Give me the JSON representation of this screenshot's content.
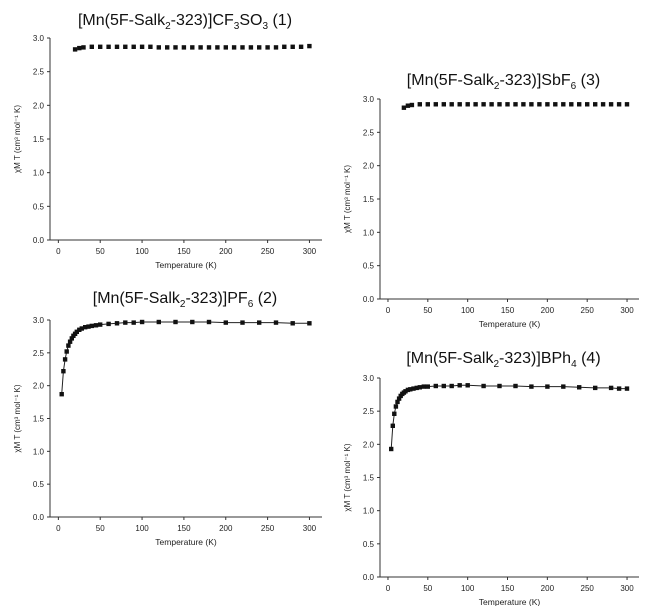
{
  "chart_data": [
    {
      "type": "scatter",
      "title_parts": {
        "pre": "[Mn(5F-Salk",
        "sub1": "2",
        "mid": "-323)]CF",
        "sub2": "3",
        "post": "SO",
        "sub3": "3",
        "tail": " (1)"
      },
      "xlabel": "Temperature (K)",
      "ylabel": "χM T (cm³ mol⁻¹ K)",
      "xlim": [
        -10,
        315
      ],
      "ylim": [
        0,
        3.0
      ],
      "xticks": [
        0,
        50,
        100,
        150,
        200,
        250,
        300
      ],
      "yticks": [
        0.0,
        0.5,
        1.0,
        1.5,
        2.0,
        2.5,
        3.0
      ],
      "connect_line": false,
      "series": [
        {
          "x": [
            20,
            25,
            30,
            40,
            50,
            60,
            70,
            80,
            90,
            100,
            110,
            120,
            130,
            140,
            150,
            160,
            170,
            180,
            190,
            200,
            210,
            220,
            230,
            240,
            250,
            260,
            270,
            280,
            290,
            300
          ],
          "values": [
            2.83,
            2.85,
            2.86,
            2.87,
            2.87,
            2.87,
            2.87,
            2.87,
            2.87,
            2.87,
            2.87,
            2.86,
            2.86,
            2.86,
            2.86,
            2.86,
            2.86,
            2.86,
            2.86,
            2.86,
            2.86,
            2.86,
            2.86,
            2.86,
            2.86,
            2.86,
            2.87,
            2.87,
            2.87,
            2.88
          ]
        }
      ]
    },
    {
      "type": "scatter",
      "title_parts": {
        "pre": "[Mn(5F-Salk",
        "sub1": "2",
        "mid": "-323)]SbF",
        "sub2": "6",
        "post": "",
        "sub3": "",
        "tail": " (3)"
      },
      "xlabel": "Temperature (K)",
      "ylabel": "χM T (cm³ mol⁻¹ K)",
      "xlim": [
        -10,
        315
      ],
      "ylim": [
        0,
        3.0
      ],
      "xticks": [
        0,
        50,
        100,
        150,
        200,
        250,
        300
      ],
      "yticks": [
        0.0,
        0.5,
        1.0,
        1.5,
        2.0,
        2.5,
        3.0
      ],
      "connect_line": false,
      "series": [
        {
          "x": [
            20,
            25,
            30,
            40,
            50,
            60,
            70,
            80,
            90,
            100,
            110,
            120,
            130,
            140,
            150,
            160,
            170,
            180,
            190,
            200,
            210,
            220,
            230,
            240,
            250,
            260,
            270,
            280,
            290,
            300
          ],
          "values": [
            2.87,
            2.9,
            2.91,
            2.92,
            2.92,
            2.92,
            2.92,
            2.92,
            2.92,
            2.92,
            2.92,
            2.92,
            2.92,
            2.92,
            2.92,
            2.92,
            2.92,
            2.92,
            2.92,
            2.92,
            2.92,
            2.92,
            2.92,
            2.92,
            2.92,
            2.92,
            2.92,
            2.92,
            2.92,
            2.92
          ]
        }
      ]
    },
    {
      "type": "scatter",
      "title_parts": {
        "pre": "[Mn(5F-Salk",
        "sub1": "2",
        "mid": "-323)]PF",
        "sub2": "6",
        "post": "",
        "sub3": "",
        "tail": " (2)"
      },
      "xlabel": "Temperature (K)",
      "ylabel": "χM T (cm³ mol⁻¹ K)",
      "xlim": [
        -10,
        315
      ],
      "ylim": [
        0,
        3.0
      ],
      "xticks": [
        0,
        50,
        100,
        150,
        200,
        250,
        300
      ],
      "yticks": [
        0.0,
        0.5,
        1.0,
        1.5,
        2.0,
        2.5,
        3.0
      ],
      "connect_line": true,
      "series": [
        {
          "x": [
            4,
            6,
            8,
            10,
            12,
            14,
            16,
            18,
            20,
            22,
            25,
            28,
            32,
            36,
            40,
            45,
            50,
            60,
            70,
            80,
            90,
            100,
            120,
            140,
            160,
            180,
            200,
            220,
            240,
            260,
            280,
            300
          ],
          "values": [
            1.87,
            2.22,
            2.4,
            2.52,
            2.61,
            2.67,
            2.72,
            2.76,
            2.79,
            2.82,
            2.85,
            2.87,
            2.89,
            2.9,
            2.91,
            2.92,
            2.93,
            2.94,
            2.95,
            2.96,
            2.96,
            2.97,
            2.97,
            2.97,
            2.97,
            2.97,
            2.96,
            2.96,
            2.96,
            2.96,
            2.95,
            2.95
          ]
        }
      ]
    },
    {
      "type": "scatter",
      "title_parts": {
        "pre": "[Mn(5F-Salk",
        "sub1": "2",
        "mid": "-323)]BPh",
        "sub2": "4",
        "post": "",
        "sub3": "",
        "tail": " (4)"
      },
      "xlabel": "Temperature (K)",
      "ylabel": "χM T (cm³ mol⁻¹ K)",
      "xlim": [
        -10,
        315
      ],
      "ylim": [
        0,
        3.0
      ],
      "xticks": [
        0,
        50,
        100,
        150,
        200,
        250,
        300
      ],
      "yticks": [
        0.0,
        0.5,
        1.0,
        1.5,
        2.0,
        2.5,
        3.0
      ],
      "connect_line": true,
      "series": [
        {
          "x": [
            4,
            6,
            8,
            10,
            12,
            14,
            16,
            18,
            20,
            22,
            25,
            28,
            32,
            36,
            40,
            45,
            50,
            60,
            70,
            80,
            90,
            100,
            120,
            140,
            160,
            180,
            200,
            220,
            240,
            260,
            280,
            290,
            300
          ],
          "values": [
            1.93,
            2.28,
            2.46,
            2.57,
            2.64,
            2.69,
            2.73,
            2.76,
            2.78,
            2.8,
            2.82,
            2.83,
            2.84,
            2.85,
            2.86,
            2.87,
            2.87,
            2.88,
            2.88,
            2.88,
            2.89,
            2.89,
            2.88,
            2.88,
            2.88,
            2.87,
            2.87,
            2.87,
            2.86,
            2.85,
            2.85,
            2.84,
            2.84
          ]
        }
      ]
    }
  ]
}
